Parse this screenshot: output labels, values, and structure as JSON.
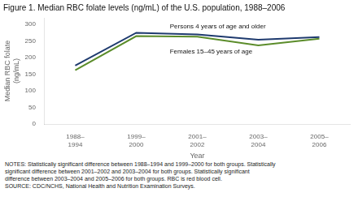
{
  "chart_data": {
    "type": "line",
    "title": "Figure 1. Median RBC folate levels (ng/mL) of the U.S. population, 1988–2006",
    "x_label": "Year",
    "y_label": "Median RBC folate\n(ng/mL)",
    "categories": [
      "1988–\n1994",
      "1999–\n2000",
      "2001–\n2002",
      "2003–\n2004",
      "2005–\n2006"
    ],
    "series": [
      {
        "name": "Persons 4 years of age and older",
        "color": "#1e3a6e",
        "values": [
          176,
          275,
          270,
          254,
          262
        ]
      },
      {
        "name": "Females 15–45 years of age",
        "color": "#5b8c2a",
        "values": [
          162,
          265,
          263,
          237,
          257
        ]
      }
    ],
    "ylim": [
      0,
      320
    ],
    "yticks": [
      0,
      50,
      100,
      150,
      200,
      250,
      300
    ],
    "grid": false,
    "notes": [
      "NOTES: Statistically significant difference between 1988–1994 and 1999–2000 for both groups.  Statistically",
      "significant difference between 2001–2002 and 2003–2004 for both groups.  Statistically significant",
      "difference between 2003–2004 and 2005–2006 for both groups.  RBC is red blood cell.",
      "SOURCE: CDC/NCHS, National Health and Nutrition Examination Surveys."
    ]
  }
}
